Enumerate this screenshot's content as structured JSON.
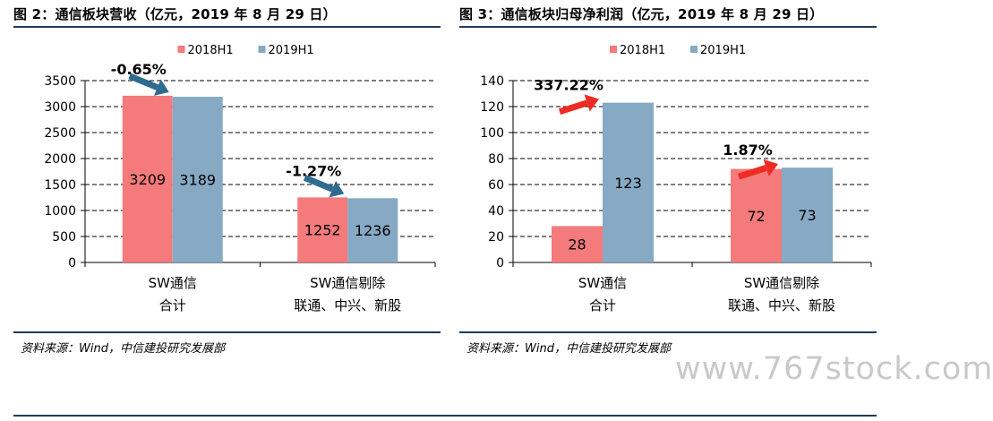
{
  "colors": {
    "s2018": "#f47a7b",
    "s2019": "#86a9c4",
    "arrow_down": "#2e6b8f",
    "arrow_up": "#ee2b24"
  },
  "left": {
    "title": "图 2：通信板块营收（亿元，2019 年 8 月 29 日）",
    "source": "资料来源：Wind，中信建投研究发展部"
  },
  "right": {
    "title": "图 3：通信板块归母净利润（亿元，2019 年 8 月 29 日）",
    "source": "资料来源：Wind，中信建投研究发展部"
  },
  "watermark": "www.767stock.com",
  "chart_data": [
    {
      "type": "bar",
      "categories": [
        [
          "SW通信",
          "合计"
        ],
        [
          "SW通信剔除",
          "联通、中兴、新股"
        ]
      ],
      "series": [
        {
          "name": "2018H1",
          "values": [
            3209,
            1252
          ]
        },
        {
          "name": "2019H1",
          "values": [
            3189,
            1236
          ]
        }
      ],
      "ylim": [
        0,
        3500
      ],
      "yticks": [
        0,
        500,
        1000,
        1500,
        2000,
        2500,
        3000,
        3500
      ],
      "grid": true,
      "legend": "top-center",
      "annotations": [
        {
          "category": 0,
          "text": "-0.65%",
          "direction": "down"
        },
        {
          "category": 1,
          "text": "-1.27%",
          "direction": "down"
        }
      ]
    },
    {
      "type": "bar",
      "categories": [
        [
          "SW通信",
          "合计"
        ],
        [
          "SW通信剔除",
          "联通、中兴、新股"
        ]
      ],
      "series": [
        {
          "name": "2018H1",
          "values": [
            28,
            72
          ]
        },
        {
          "name": "2019H1",
          "values": [
            123,
            73
          ]
        }
      ],
      "ylim": [
        0,
        140
      ],
      "yticks": [
        0,
        20,
        40,
        60,
        80,
        100,
        120,
        140
      ],
      "grid": true,
      "legend": "top-center",
      "annotations": [
        {
          "category": 0,
          "text": "337.22%",
          "direction": "up"
        },
        {
          "category": 1,
          "text": "1.87%",
          "direction": "up"
        }
      ]
    }
  ]
}
